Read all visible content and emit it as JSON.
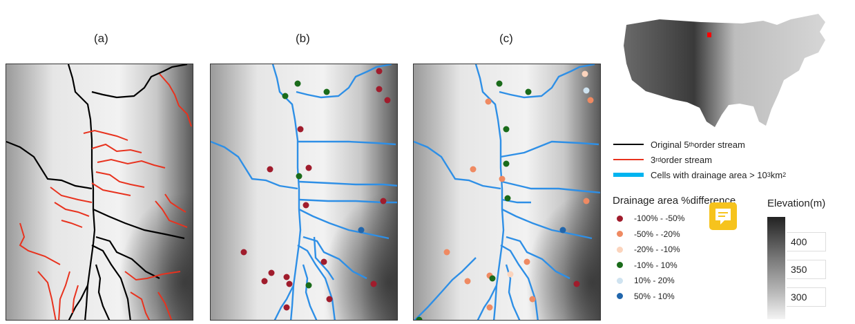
{
  "panels": [
    {
      "label": "(a)"
    },
    {
      "label": "(b)"
    },
    {
      "label": "(c)"
    }
  ],
  "legend_lines": {
    "original": {
      "text": "Original 5",
      "sup": "th",
      "tail": " order stream",
      "color": "#000000"
    },
    "third": {
      "text": "3",
      "sup": "rd",
      "tail": " order stream",
      "color": "#e8321e"
    },
    "cells": {
      "text": "Cells with drainage area > 10",
      "sup": "3",
      "tail": " km",
      "sup2": "2",
      "color": "#00b4f0"
    }
  },
  "diff_legend": {
    "title": "Drainage area %difference",
    "items": [
      {
        "label": "-100% - -50%",
        "color": "#a01c2c"
      },
      {
        "label": "-50% - -20%",
        "color": "#ef8a62"
      },
      {
        "label": "-20% - -10%",
        "color": "#fbd4bd"
      },
      {
        "label": "-10% - 10%",
        "color": "#1a6b1a"
      },
      {
        "label": "10% - 20%",
        "color": "#cfe3f0"
      },
      {
        "label": "50% - 10%",
        "color": "#2166ac"
      }
    ]
  },
  "elevation": {
    "title": "Elevation(m)",
    "ticks": [
      "400",
      "350",
      "300"
    ]
  },
  "colors": {
    "stream_black": "#000000",
    "stream_red": "#e8321e",
    "stream_blue": "#2e8fe6",
    "highlight": "#ff0000"
  }
}
